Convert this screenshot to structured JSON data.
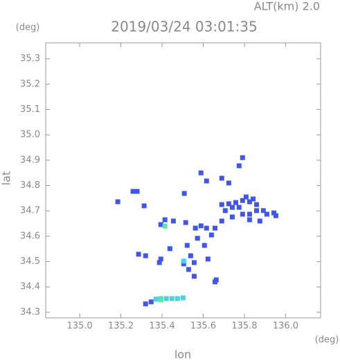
{
  "chart_data": {
    "type": "scatter",
    "title": "2019/03/24 03:01:35",
    "subtitle": "ALT(km) 2.0",
    "y_unit": "(deg)",
    "x_unit": "(deg)",
    "x_label": "lon",
    "y_label": "lat",
    "xlim": [
      134.835,
      136.17
    ],
    "ylim": [
      34.278,
      35.363
    ],
    "xticks": [
      {
        "value": 135,
        "label": "135.0"
      },
      135.2,
      135.4,
      135.6,
      135.8,
      {
        "value": 136,
        "label": "136.0"
      }
    ],
    "yticks": [
      34.3,
      34.4,
      34.5,
      34.6,
      34.7,
      34.8,
      34.9,
      {
        "value": 35,
        "label": "35.0"
      },
      35.1,
      35.2,
      35.3
    ],
    "series": [
      {
        "color": "#3f55ee",
        "x": [
          135.185,
          135.259,
          135.279,
          135.313,
          135.394,
          135.414,
          135.455,
          135.508,
          135.515,
          135.562,
          135.589,
          135.616,
          135.69,
          135.724,
          135.758,
          135.791,
          135.808,
          135.825,
          135.842,
          135.859,
          135.774,
          135.741,
          135.707,
          135.69,
          135.741,
          135.791,
          135.825,
          135.859,
          135.892,
          135.909,
          135.943,
          135.953,
          135.825,
          135.875,
          135.774,
          135.791,
          135.724,
          135.69,
          135.616,
          135.589,
          135.522,
          135.539,
          135.556,
          135.505,
          135.529,
          135.572,
          135.606,
          135.64,
          135.657,
          135.623,
          135.556,
          135.663,
          135.657,
          135.394,
          135.387,
          135.286,
          135.32,
          135.438,
          135.32,
          135.347
        ],
        "values": [
          34.736,
          34.777,
          34.777,
          34.72,
          34.646,
          34.665,
          34.66,
          34.769,
          34.654,
          34.632,
          34.641,
          34.632,
          34.725,
          34.728,
          34.733,
          34.741,
          34.755,
          34.736,
          34.747,
          34.725,
          34.714,
          34.714,
          34.701,
          34.66,
          34.676,
          34.687,
          34.687,
          34.701,
          34.701,
          34.687,
          34.692,
          34.681,
          34.665,
          34.66,
          34.878,
          34.91,
          34.81,
          34.829,
          34.818,
          34.85,
          34.564,
          34.523,
          34.496,
          34.491,
          34.469,
          34.592,
          34.564,
          34.605,
          34.632,
          34.51,
          34.442,
          34.428,
          34.42,
          34.51,
          34.496,
          34.529,
          34.523,
          34.551,
          34.333,
          34.341
        ]
      },
      {
        "color": "#44d4e4",
        "x": [
          135.37,
          135.394,
          135.421,
          135.448,
          135.475,
          135.502,
          135.505
        ],
        "values": [
          34.352,
          34.354,
          34.354,
          34.354,
          34.354,
          34.357,
          34.502
        ]
      },
      {
        "color": "#55e8a8",
        "x": [
          135.394,
          135.414
        ],
        "values": [
          34.349,
          34.64
        ]
      }
    ]
  }
}
